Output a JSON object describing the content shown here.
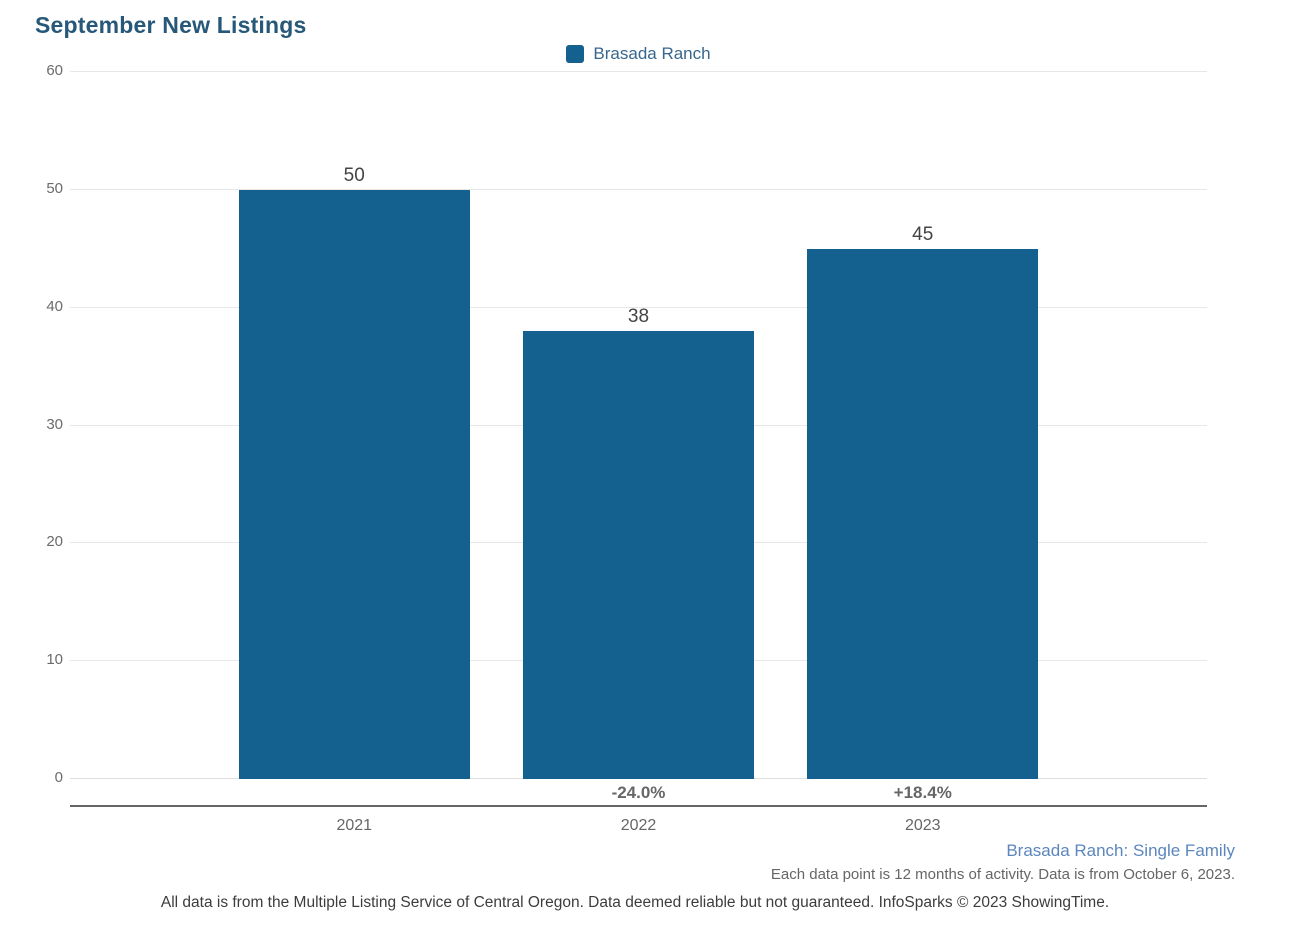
{
  "title": "September New Listings",
  "legend": {
    "label": "Brasada Ranch"
  },
  "chart_data": {
    "type": "bar",
    "title": "September New Listings",
    "categories": [
      "2021",
      "2022",
      "2023"
    ],
    "series": [
      {
        "name": "Brasada Ranch",
        "values": [
          50,
          38,
          45
        ]
      }
    ],
    "value_labels": [
      "50",
      "38",
      "45"
    ],
    "pct_change_labels": [
      "",
      "-24.0%",
      "+18.4%"
    ],
    "ylim": [
      0,
      60
    ],
    "yticks": [
      0,
      10,
      20,
      30,
      40,
      50,
      60
    ],
    "grid": true,
    "legend_position": "top-center",
    "xlabel": "",
    "ylabel": ""
  },
  "footnotes": {
    "series_description": "Brasada Ranch: Single Family",
    "data_period": "Each data point is 12 months of activity. Data is from October 6, 2023.",
    "disclaimer": "All data is from the Multiple Listing Service of Central Oregon. Data deemed reliable but not guaranteed. InfoSparks © 2023 ShowingTime."
  },
  "colors": {
    "bar": "#14618F",
    "title_text": "#275879",
    "legend_text": "#38668C",
    "series_description_text": "#5B86BE",
    "grid_line": "#E7E7E7",
    "zero_grid_line": "#DEDEDE",
    "axis_line": "#666666",
    "tick_label_text": "#6B6B6B",
    "value_label_text": "#444444",
    "pct_label_text": "#666666",
    "year_label_text": "#666666",
    "disclaimer_text": "#3D3D3D"
  }
}
